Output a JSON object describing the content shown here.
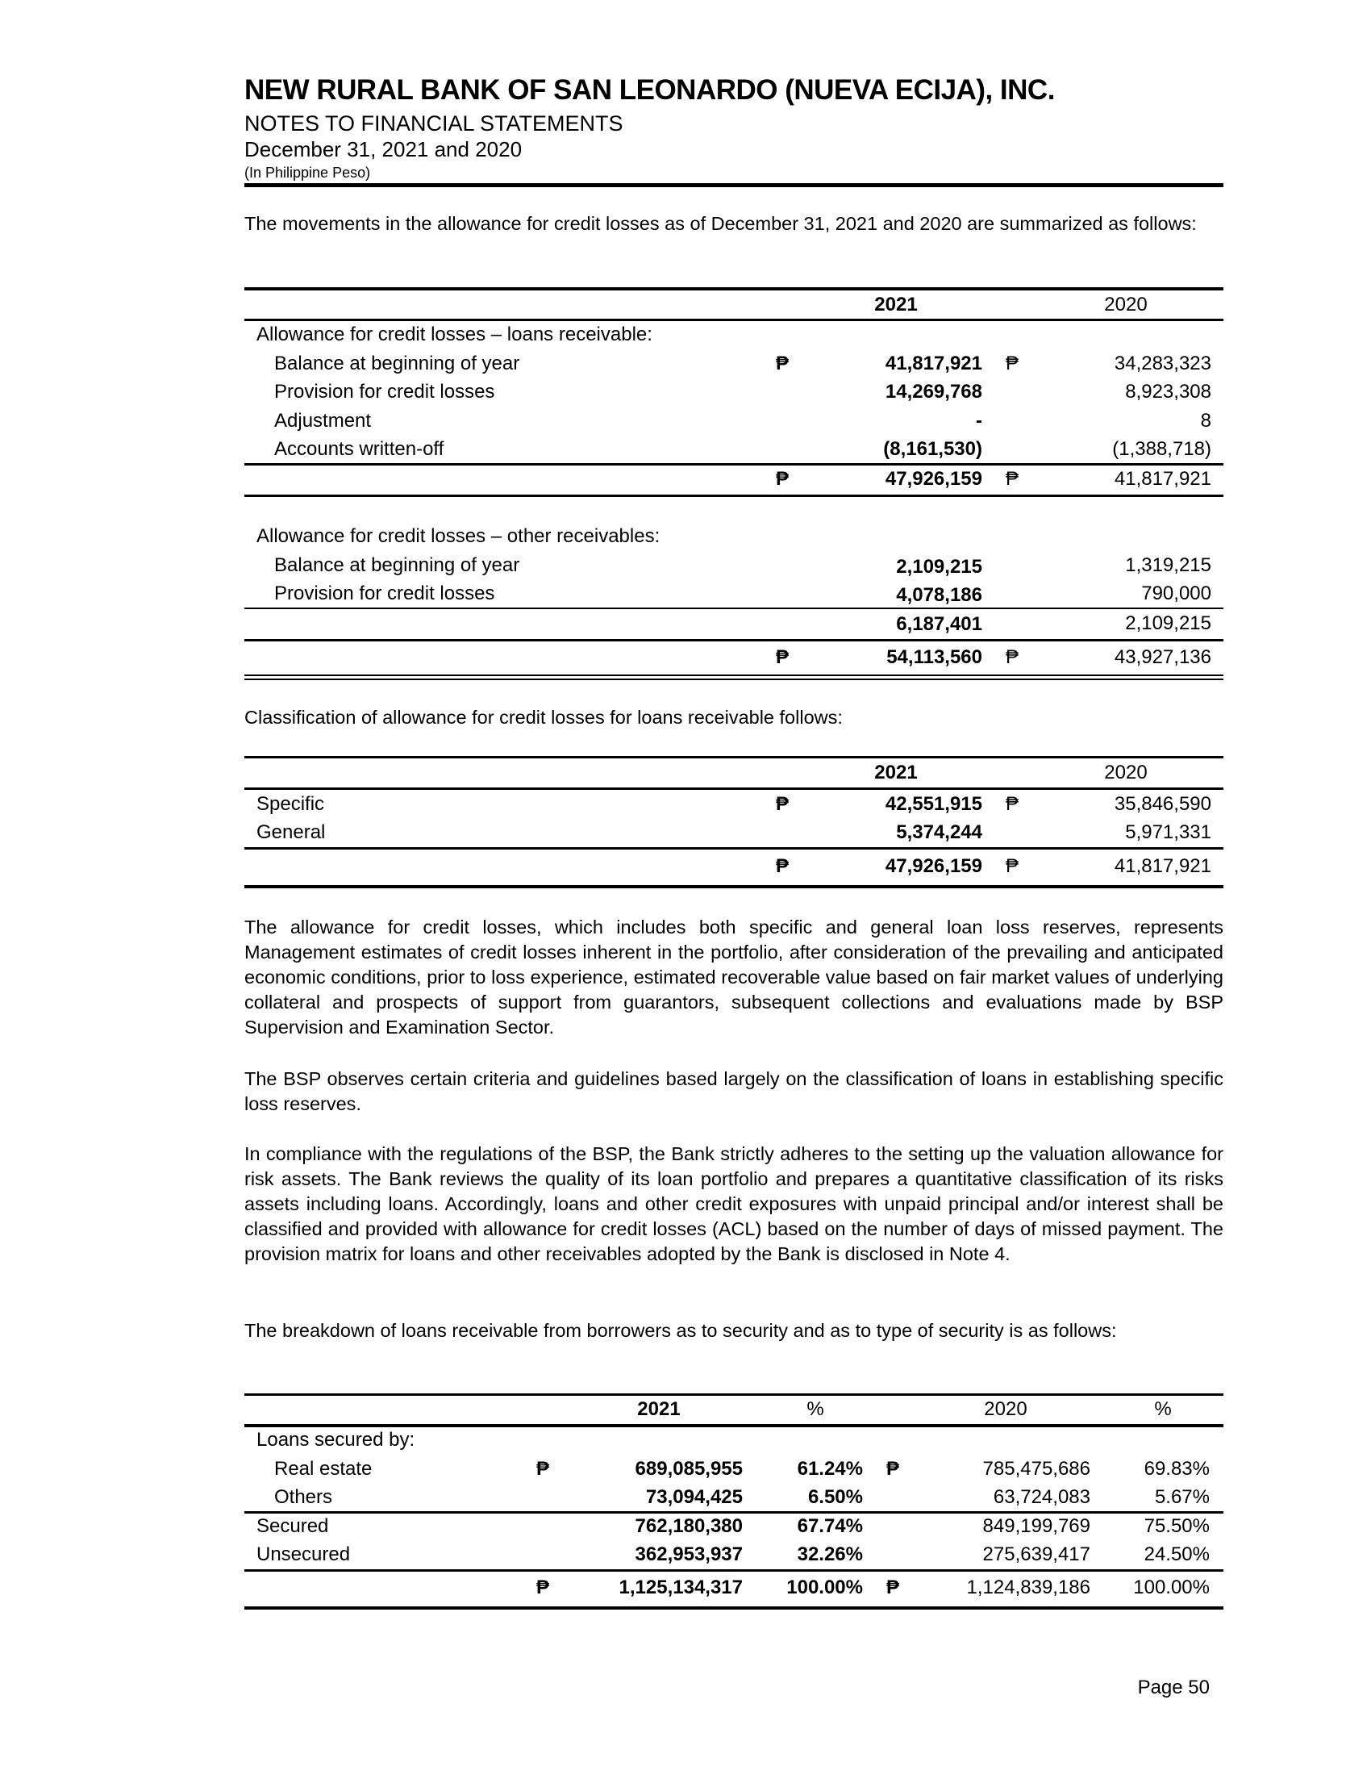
{
  "header": {
    "company": "NEW RURAL BANK OF SAN LEONARDO (NUEVA ECIJA), INC.",
    "subtitle": "NOTES TO FINANCIAL STATEMENTS",
    "dates": "December 31, 2021 and 2020",
    "currency_note": "(In Philippine Peso)"
  },
  "intro1": "The movements in the allowance for credit losses as of December 31, 2021 and 2020 are summarized as follows:",
  "currency_symbol": "₱",
  "table1": {
    "col_2021": "2021",
    "col_2020": "2020",
    "section1_label": "Allowance for credit losses – loans receivable:",
    "section1_rows": [
      {
        "label": "Balance at beginning of year",
        "v2021": "41,817,921",
        "v2020": "34,283,323"
      },
      {
        "label": "Provision for credit losses",
        "v2021": "14,269,768",
        "v2020": "8,923,308"
      },
      {
        "label": "Adjustment",
        "v2021": "-",
        "v2020": "8"
      },
      {
        "label": "Accounts written-off",
        "v2021": "(8,161,530)",
        "v2020": "(1,388,718)"
      }
    ],
    "section1_total": {
      "v2021": "47,926,159",
      "v2020": "41,817,921"
    },
    "section2_label": "Allowance for credit losses – other receivables:",
    "section2_rows": [
      {
        "label": "Balance at beginning of year",
        "v2021": "2,109,215",
        "v2020": "1,319,215"
      },
      {
        "label": "Provision for credit losses",
        "v2021": "4,078,186",
        "v2020": "790,000"
      }
    ],
    "section2_total": {
      "v2021": "6,187,401",
      "v2020": "2,109,215"
    },
    "grand_total": {
      "v2021": "54,113,560",
      "v2020": "43,927,136"
    }
  },
  "intro2": "Classification of allowance for credit losses for loans receivable follows:",
  "table2": {
    "col_2021": "2021",
    "col_2020": "2020",
    "rows": [
      {
        "label": "Specific",
        "v2021": "42,551,915",
        "v2020": "35,846,590"
      },
      {
        "label": "General",
        "v2021": "5,374,244",
        "v2020": "5,971,331"
      }
    ],
    "total": {
      "v2021": "47,926,159",
      "v2020": "41,817,921"
    }
  },
  "paragraphs": [
    "The allowance for credit losses, which includes both specific and general loan loss reserves, represents Management estimates of credit losses inherent in the portfolio, after consideration of the prevailing and anticipated economic conditions, prior to loss experience, estimated recoverable value based on fair market values of underlying collateral and prospects of support from guarantors, subsequent collections and evaluations made by BSP Supervision and Examination Sector.",
    "The BSP observes certain criteria and guidelines based largely on the classification of loans in establishing specific loss reserves.",
    "In compliance with the regulations of the BSP, the Bank strictly adheres to the setting up the valuation allowance for risk assets. The Bank reviews the quality of its loan portfolio and prepares a quantitative classification of its risks assets including loans. Accordingly, loans and other credit exposures with unpaid principal and/or interest shall be classified and provided with allowance for credit losses (ACL) based on the number of days of missed payment. The provision matrix for loans and other receivables adopted by the Bank is disclosed in Note 4.",
    "The breakdown of loans receivable from borrowers as to security and as to type of security is as follows:"
  ],
  "table3": {
    "col_2021": "2021",
    "col_pct1": "%",
    "col_2020": "2020",
    "col_pct2": "%",
    "section_label": "Loans secured by:",
    "sub_rows": [
      {
        "label": "Real estate",
        "v2021": "689,085,955",
        "p2021": "61.24%",
        "v2020": "785,475,686",
        "p2020": "69.83%"
      },
      {
        "label": "Others",
        "v2021": "73,094,425",
        "p2021": "6.50%",
        "v2020": "63,724,083",
        "p2020": "5.67%"
      }
    ],
    "rows": [
      {
        "label": "Secured",
        "v2021": "762,180,380",
        "p2021": "67.74%",
        "v2020": "849,199,769",
        "p2020": "75.50%"
      },
      {
        "label": "Unsecured",
        "v2021": "362,953,937",
        "p2021": "32.26%",
        "v2020": "275,639,417",
        "p2020": "24.50%"
      }
    ],
    "total": {
      "v2021": "1,125,134,317",
      "p2021": "100.00%",
      "v2020": "1,124,839,186",
      "p2020": "100.00%"
    }
  },
  "footer": {
    "page": "Page 50"
  }
}
